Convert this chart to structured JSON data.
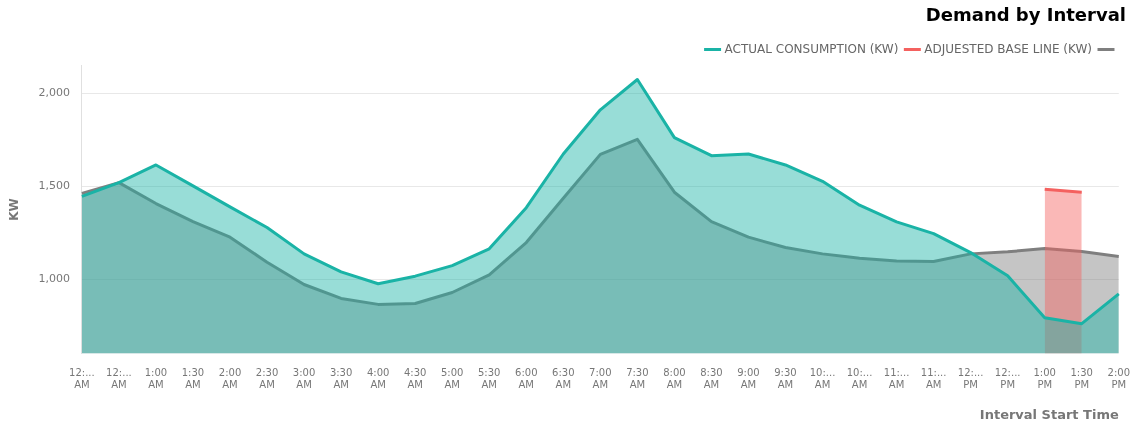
{
  "chart_data": {
    "type": "area",
    "title": "Demand by Interval",
    "xlabel": "Interval Start Time",
    "ylabel": "KW",
    "categories": [
      "12:... AM",
      "12:... AM",
      "1:00 AM",
      "1:30 AM",
      "2:00 AM",
      "2:30 AM",
      "3:00 AM",
      "3:30 AM",
      "4:00 AM",
      "4:30 AM",
      "5:00 AM",
      "5:30 AM",
      "6:00 AM",
      "6:30 AM",
      "7:00 AM",
      "7:30 AM",
      "8:00 AM",
      "8:30 AM",
      "9:00 AM",
      "9:30 AM",
      "10:... AM",
      "10:... AM",
      "11:... AM",
      "11:... AM",
      "12:... PM",
      "12:... PM",
      "1:00 PM",
      "1:30 PM",
      "2:00 PM"
    ],
    "series": [
      {
        "name": "ACTUAL CONSUMPTION (KW)",
        "color": "#1ab3a6",
        "values": [
          1446,
          1520,
          1615,
          1502,
          1389,
          1278,
          1136,
          1039,
          975,
          1016,
          1073,
          1163,
          1385,
          1674,
          1912,
          2075,
          1762,
          1665,
          1674,
          1615,
          1527,
          1398,
          1308,
          1245,
          1143,
          1018,
          792,
          760,
          921
        ]
      },
      {
        "name": "ADJUESTED BASE LINE (KW)",
        "color": "#f4615f",
        "values": [
          null,
          null,
          null,
          null,
          null,
          null,
          null,
          null,
          null,
          null,
          null,
          null,
          null,
          null,
          null,
          null,
          null,
          null,
          null,
          null,
          null,
          null,
          null,
          null,
          null,
          null,
          1484,
          1468,
          null
        ]
      },
      {
        "color": "#7f7f7f",
        "values": [
          1462,
          1520,
          1407,
          1310,
          1226,
          1091,
          971,
          896,
          864,
          869,
          928,
          1023,
          1197,
          1436,
          1672,
          1753,
          1468,
          1310,
          1226,
          1170,
          1136,
          1113,
          1097,
          1095,
          1136,
          1147,
          1165,
          1149,
          1122
        ]
      }
    ],
    "ylim": [
      600,
      2150
    ],
    "yticks": [
      {
        "value": 1000,
        "label": "1,000"
      },
      {
        "value": 1500,
        "label": "1,500"
      },
      {
        "value": 2000,
        "label": "2,000"
      }
    ],
    "grid": "y",
    "legend": "top right"
  }
}
